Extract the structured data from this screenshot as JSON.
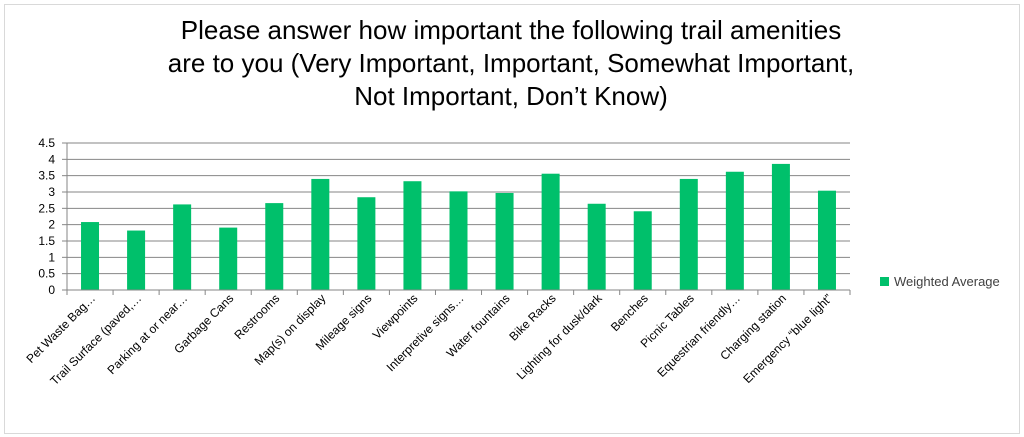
{
  "title_lines": [
    "Please answer how important the following trail amenities",
    "are to you (Very Important, Important, Somewhat Important,",
    "Not Important, Don’t Know)"
  ],
  "chart_data": {
    "type": "bar",
    "title": "Please answer how important the following trail amenities are to you (Very Important, Important, Somewhat Important, Not Important, Don’t Know)",
    "categories": [
      "Pet Waste Bag…",
      "Trail Surface (paved,…",
      "Parking at or near…",
      "Garbage Cans",
      "Restrooms",
      "Map(s) on display",
      "Mileage signs",
      "Viewpoints",
      "Interpretive signs…",
      "Water fountains",
      "Bike Racks",
      "Lighting for dusk/dark",
      "Benches",
      "Picnic Tables",
      "Equestrian friendly…",
      "Charging station",
      "Emergency “blue light”"
    ],
    "series": [
      {
        "name": "Weighted Average",
        "color": "#00c06b",
        "values": [
          2.08,
          1.82,
          2.62,
          1.91,
          2.66,
          3.4,
          2.84,
          3.33,
          3.02,
          2.97,
          3.56,
          2.64,
          2.41,
          3.4,
          3.62,
          3.86,
          3.04
        ]
      }
    ],
    "ylim": [
      0,
      4.5
    ],
    "yticks": [
      "0",
      "0.5",
      "1",
      "1.5",
      "2",
      "2.5",
      "3",
      "3.5",
      "4",
      "4.5"
    ],
    "grid": true,
    "legend_position": "right",
    "xlabel": "",
    "ylabel": ""
  }
}
